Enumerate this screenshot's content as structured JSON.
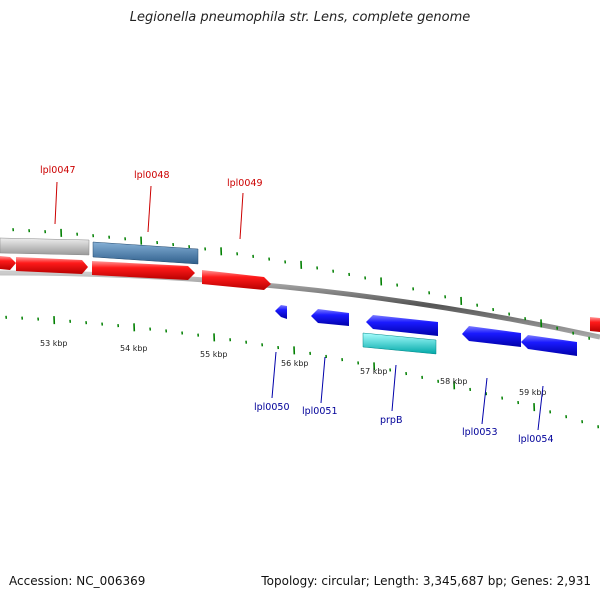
{
  "title": "Legionella pneumophila str. Lens, complete genome",
  "footer": {
    "accession": "Accession: NC_006369",
    "summary": "Topology: circular; Length: 3,345,687 bp; Genes: 2,931"
  },
  "colors": {
    "forward_cds": "#ff0000",
    "reverse_cds": "#0000ff",
    "forward_label": "#cc0000",
    "reverse_label": "#000099",
    "rna": "#4682b4",
    "pseudo": "#c0c0c0",
    "highlight": "#00c8c8",
    "tick": "#008000",
    "backbone": "#777777"
  },
  "tick_labels": [
    "53 kbp",
    "54 kbp",
    "55 kbp",
    "56 kbp",
    "57 kbp",
    "58 kbp",
    "59 kbp"
  ],
  "forward_labels": [
    "lpl0047",
    "lpl0048",
    "lpl0049"
  ],
  "reverse_labels": [
    "lpl0050",
    "lpl0051",
    "prpB",
    "lpl0053",
    "lpl0054"
  ]
}
